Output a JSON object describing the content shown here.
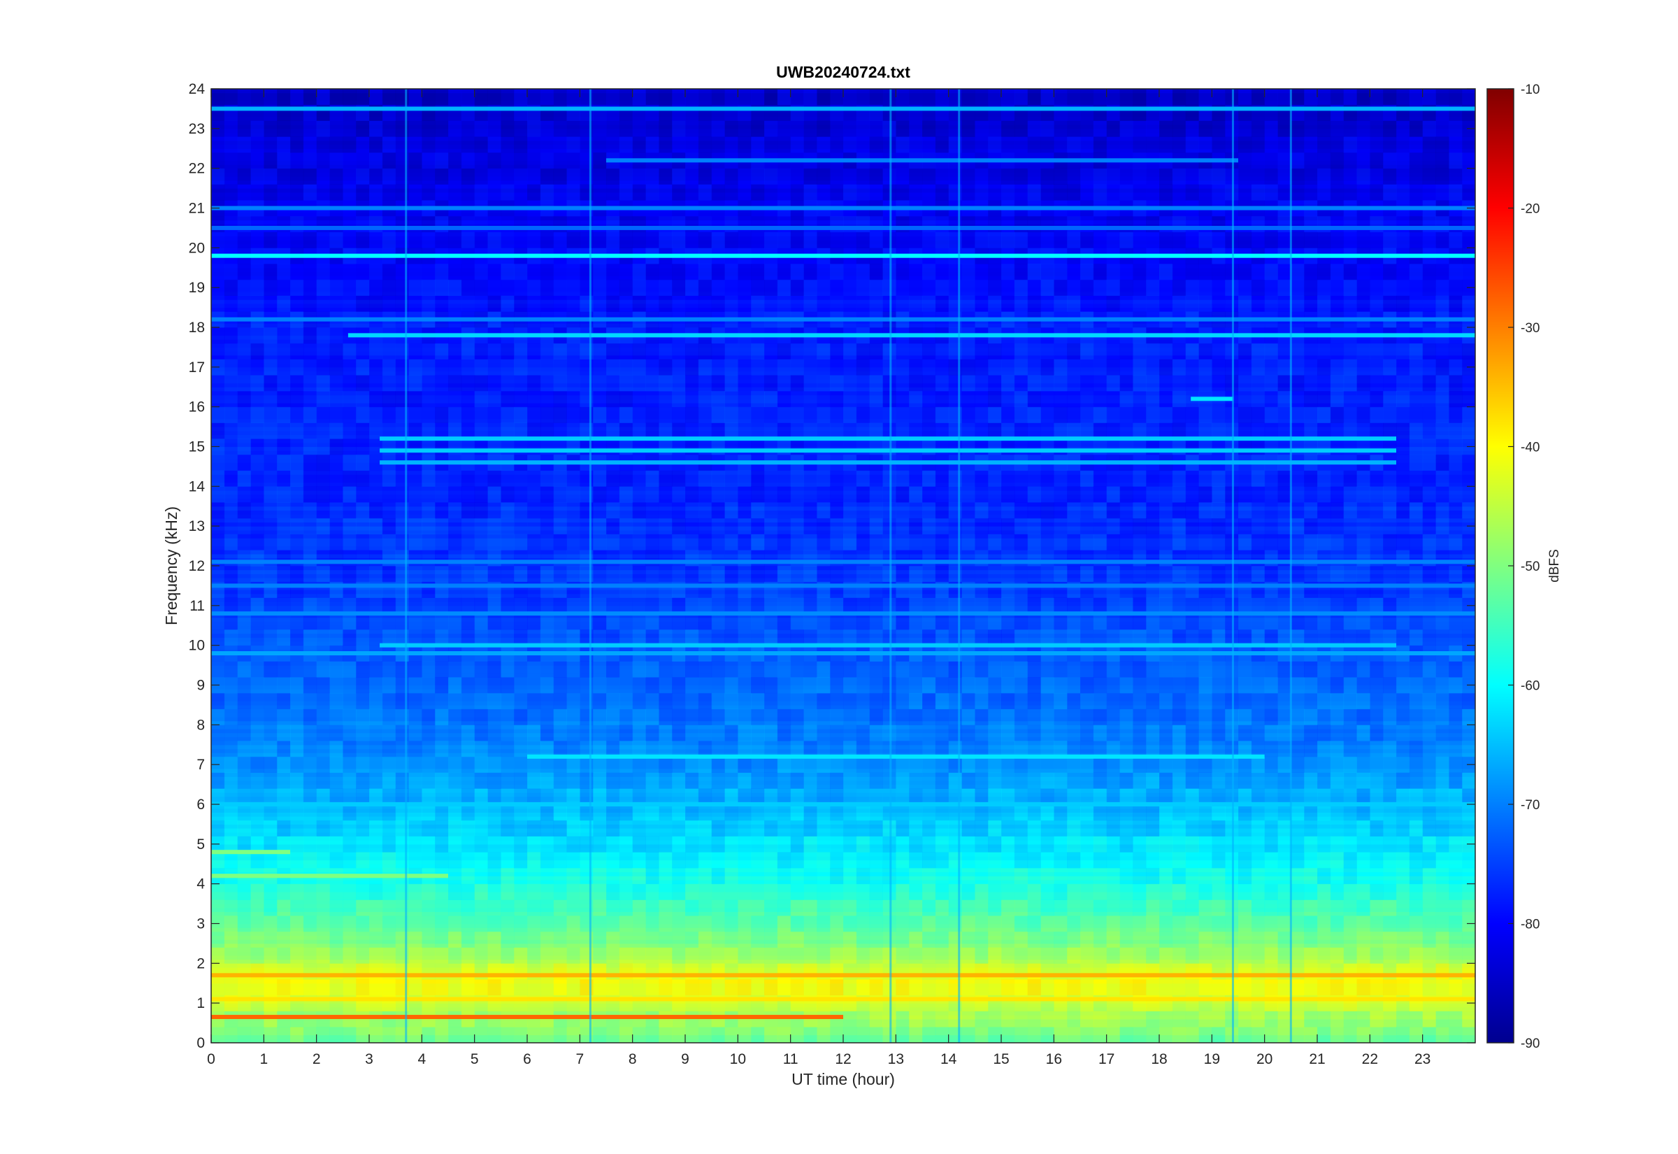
{
  "chart_data": {
    "type": "heatmap",
    "title": "UWB20240724.txt",
    "xlabel": "UT time (hour)",
    "ylabel": "Frequency (kHz)",
    "xlim": [
      0,
      24
    ],
    "ylim": [
      0,
      24
    ],
    "x_ticks": [
      "0",
      "1",
      "2",
      "3",
      "4",
      "5",
      "6",
      "7",
      "8",
      "9",
      "10",
      "11",
      "12",
      "13",
      "14",
      "15",
      "16",
      "17",
      "18",
      "19",
      "20",
      "21",
      "22",
      "23"
    ],
    "y_ticks": [
      "0",
      "1",
      "2",
      "3",
      "4",
      "5",
      "6",
      "7",
      "8",
      "9",
      "10",
      "11",
      "12",
      "13",
      "14",
      "15",
      "16",
      "17",
      "18",
      "19",
      "20",
      "21",
      "22",
      "23",
      "24"
    ],
    "colormap": "jet",
    "colorbar": {
      "label": "dBFS",
      "range": [
        -90,
        -10
      ],
      "ticks": [
        "-10",
        "-20",
        "-30",
        "-40",
        "-50",
        "-60",
        "-70",
        "-80",
        "-90"
      ]
    },
    "background_level_profile": [
      {
        "f_khz": 0,
        "dbfs": -52
      },
      {
        "f_khz": 1.5,
        "dbfs": -40
      },
      {
        "f_khz": 2.5,
        "dbfs": -50
      },
      {
        "f_khz": 4,
        "dbfs": -58
      },
      {
        "f_khz": 5.5,
        "dbfs": -64
      },
      {
        "f_khz": 7,
        "dbfs": -69
      },
      {
        "f_khz": 9,
        "dbfs": -72
      },
      {
        "f_khz": 11,
        "dbfs": -75
      },
      {
        "f_khz": 14,
        "dbfs": -77
      },
      {
        "f_khz": 18,
        "dbfs": -78
      },
      {
        "f_khz": 21,
        "dbfs": -81
      },
      {
        "f_khz": 24,
        "dbfs": -84
      }
    ],
    "narrowband_lines": [
      {
        "f_khz": 19.8,
        "t_start": 0,
        "t_end": 24,
        "dbfs": -60
      },
      {
        "f_khz": 17.8,
        "t_start": 2.6,
        "t_end": 24,
        "dbfs": -63
      },
      {
        "f_khz": 18.2,
        "t_start": 0,
        "t_end": 24,
        "dbfs": -70
      },
      {
        "f_khz": 23.5,
        "t_start": 0,
        "t_end": 24,
        "dbfs": -66
      },
      {
        "f_khz": 22.2,
        "t_start": 7.5,
        "t_end": 19.5,
        "dbfs": -70
      },
      {
        "f_khz": 21.0,
        "t_start": 0,
        "t_end": 24,
        "dbfs": -70
      },
      {
        "f_khz": 20.5,
        "t_start": 0,
        "t_end": 24,
        "dbfs": -72
      },
      {
        "f_khz": 15.2,
        "t_start": 3.2,
        "t_end": 22.5,
        "dbfs": -64
      },
      {
        "f_khz": 14.9,
        "t_start": 3.2,
        "t_end": 22.5,
        "dbfs": -64
      },
      {
        "f_khz": 14.6,
        "t_start": 3.2,
        "t_end": 22.5,
        "dbfs": -66
      },
      {
        "f_khz": 16.2,
        "t_start": 18.6,
        "t_end": 19.4,
        "dbfs": -62
      },
      {
        "f_khz": 12.1,
        "t_start": 0,
        "t_end": 24,
        "dbfs": -70
      },
      {
        "f_khz": 11.5,
        "t_start": 0,
        "t_end": 24,
        "dbfs": -70
      },
      {
        "f_khz": 10.8,
        "t_start": 0,
        "t_end": 24,
        "dbfs": -69
      },
      {
        "f_khz": 10.0,
        "t_start": 3.2,
        "t_end": 22.5,
        "dbfs": -64
      },
      {
        "f_khz": 9.8,
        "t_start": 0,
        "t_end": 24,
        "dbfs": -67
      },
      {
        "f_khz": 7.2,
        "t_start": 6.0,
        "t_end": 20.0,
        "dbfs": -62
      },
      {
        "f_khz": 6.0,
        "t_start": 0,
        "t_end": 24,
        "dbfs": -64
      },
      {
        "f_khz": 4.8,
        "t_start": 0,
        "t_end": 1.5,
        "dbfs": -50
      },
      {
        "f_khz": 4.2,
        "t_start": 0,
        "t_end": 4.5,
        "dbfs": -50
      },
      {
        "f_khz": 1.7,
        "t_start": 0,
        "t_end": 24,
        "dbfs": -34
      },
      {
        "f_khz": 1.1,
        "t_start": 0,
        "t_end": 24,
        "dbfs": -38
      },
      {
        "f_khz": 0.65,
        "t_start": 0,
        "t_end": 12,
        "dbfs": -28
      }
    ],
    "broadband_bursts_hours": [
      3.7,
      7.2,
      12.9,
      14.2,
      19.4,
      20.5
    ]
  }
}
